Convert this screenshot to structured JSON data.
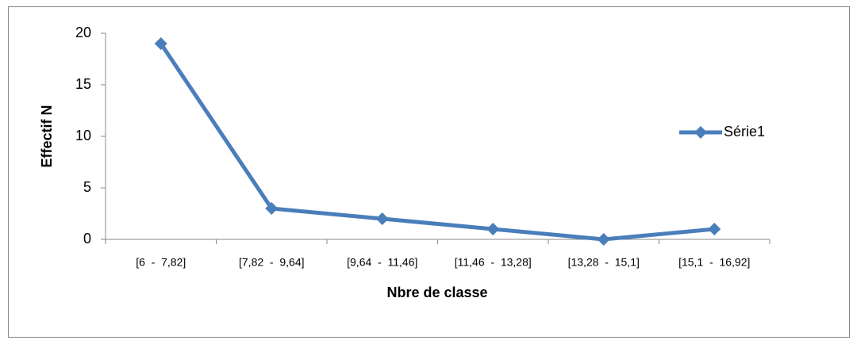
{
  "chart_data": {
    "type": "line",
    "categories": [
      "[6  -  7,82]",
      "[7,82  -  9,64]",
      "[9,64  -  11,46]",
      "[11,46  -  13,28]",
      "[13,28  -  15,1]",
      "[15,1  -  16,92]"
    ],
    "series": [
      {
        "name": "Série1",
        "color": "#4a7ebb",
        "values": [
          19,
          3,
          2,
          1,
          0,
          1
        ]
      }
    ],
    "xlabel": "Nbre de classe",
    "ylabel": "Effectif N",
    "ylim": [
      0,
      20
    ],
    "yticks": [
      0,
      5,
      10,
      15,
      20
    ],
    "grid": false,
    "legend": "right"
  }
}
